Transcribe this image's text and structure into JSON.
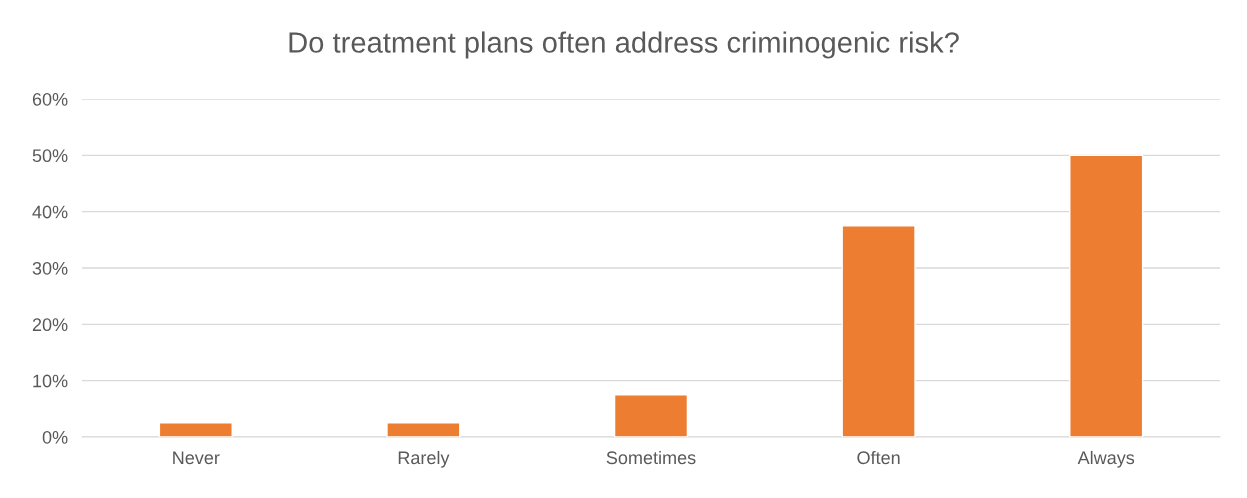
{
  "chart_data": {
    "type": "bar",
    "title": "Do treatment plans often address criminogenic risk?",
    "categories": [
      "Never",
      "Rarely",
      "Sometimes",
      "Often",
      "Always"
    ],
    "values": [
      2.5,
      2.5,
      7.5,
      37.5,
      50
    ],
    "color": "#ed7d31",
    "ylim": [
      0,
      60
    ],
    "yticks": [
      {
        "value": 0,
        "label": "0%"
      },
      {
        "value": 10,
        "label": "10%"
      },
      {
        "value": 20,
        "label": "20%"
      },
      {
        "value": 30,
        "label": "30%"
      },
      {
        "value": 40,
        "label": "40%"
      },
      {
        "value": 50,
        "label": "50%"
      },
      {
        "value": 60,
        "label": "60%"
      }
    ],
    "grid": "y",
    "legend": false
  }
}
